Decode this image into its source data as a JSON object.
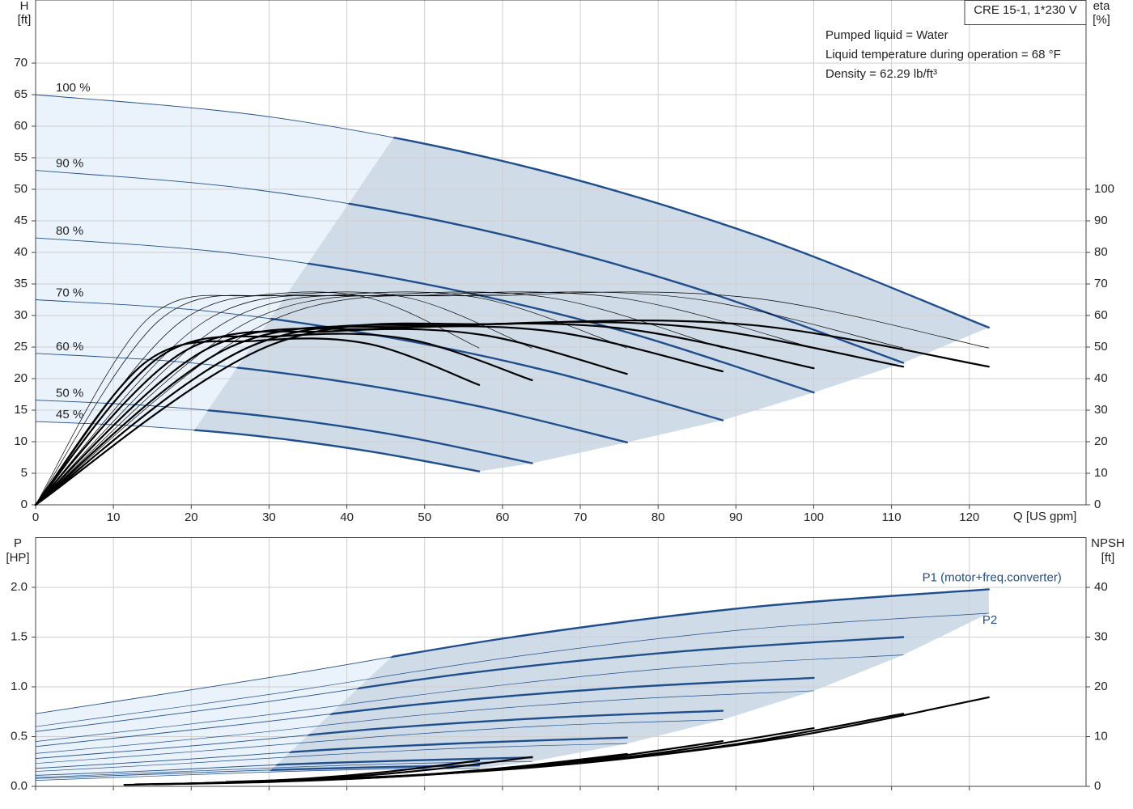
{
  "chart_data": [
    {
      "type": "line",
      "y_label": "H",
      "y_unit": "[ft]",
      "y2_label": "eta",
      "y2_unit": "[%]",
      "x_label": "Q [US gpm]",
      "legend_box": "CRE 15-1, 1*230 V",
      "annotations": [
        "Pumped liquid = Water",
        "Liquid temperature during operation = 68 °F",
        "Density = 62.29 lb/ft³"
      ],
      "xlim": [
        0,
        135
      ],
      "xticks": [
        0,
        10,
        20,
        30,
        40,
        50,
        60,
        70,
        80,
        90,
        100,
        110,
        120
      ],
      "xtick_labels": true,
      "ylim": [
        0,
        80
      ],
      "yticks": [
        0,
        5,
        10,
        15,
        20,
        25,
        30,
        35,
        40,
        45,
        50,
        55,
        60,
        65,
        70
      ],
      "y2lim": [
        0,
        160
      ],
      "y2ticks": [
        0,
        10,
        20,
        30,
        40,
        50,
        60,
        70,
        80,
        90,
        100
      ],
      "grid": true,
      "label_position": "start",
      "min_flow_line": {
        "x": [
          20.5,
          46
        ],
        "values": [
          12,
          58.2
        ]
      },
      "series": [
        {
          "name": "100 %",
          "color": "#1f4e8c",
          "weight": "split",
          "x": [
            0,
            30.6,
            61.3,
            91.9,
            122.5
          ],
          "values": [
            65,
            61.4,
            54.1,
            43.0,
            28.1
          ]
        },
        {
          "name": "90 %",
          "color": "#1f4e8c",
          "weight": "split",
          "x": [
            0,
            27.9,
            55.8,
            83.6,
            111.5
          ],
          "values": [
            53,
            50.0,
            44.0,
            34.8,
            22.5
          ]
        },
        {
          "name": "80 %",
          "color": "#1f4e8c",
          "weight": "split",
          "x": [
            0,
            25,
            50,
            75,
            100
          ],
          "values": [
            42.3,
            39.9,
            35.0,
            27.7,
            17.8
          ]
        },
        {
          "name": "70 %",
          "color": "#1f4e8c",
          "weight": "split",
          "x": [
            0,
            22.1,
            44.2,
            66.2,
            88.3
          ],
          "values": [
            32.5,
            30.7,
            26.8,
            21.1,
            13.4
          ]
        },
        {
          "name": "60 %",
          "color": "#1f4e8c",
          "weight": "split",
          "x": [
            0,
            19,
            38,
            57,
            76
          ],
          "values": [
            24.0,
            22.6,
            19.8,
            15.6,
            9.9
          ]
        },
        {
          "name": "50 %",
          "color": "#1f4e8c",
          "weight": "split",
          "x": [
            0,
            16,
            31.9,
            47.9,
            63.8
          ],
          "values": [
            16.6,
            15.6,
            13.7,
            10.7,
            6.6
          ]
        },
        {
          "name": "45 %",
          "color": "#1f4e8c",
          "weight": "split",
          "x": [
            0,
            14.3,
            28.5,
            42.8,
            57
          ],
          "values": [
            13.2,
            12.4,
            10.9,
            8.5,
            5.3
          ]
        },
        {
          "axis": "y2",
          "color": "#000000",
          "weight": "light",
          "x": [
            0,
            30.6,
            61.3,
            91.9,
            122.5
          ],
          "values": [
            0,
            58.7,
            66.4,
            65.6,
            49.7
          ]
        },
        {
          "axis": "y2",
          "color": "#000000",
          "weight": "light",
          "x": [
            0,
            27.9,
            55.8,
            83.6,
            111.5
          ],
          "values": [
            0,
            58.7,
            66.4,
            65.6,
            49.7
          ]
        },
        {
          "axis": "y2",
          "color": "#000000",
          "weight": "light",
          "x": [
            0,
            25,
            50,
            75,
            100
          ],
          "values": [
            0,
            58.7,
            66.4,
            65.6,
            49.7
          ]
        },
        {
          "axis": "y2",
          "color": "#000000",
          "weight": "light",
          "x": [
            0,
            22.1,
            44.2,
            66.2,
            88.3
          ],
          "values": [
            0,
            58.7,
            66.4,
            65.6,
            49.7
          ]
        },
        {
          "axis": "y2",
          "color": "#000000",
          "weight": "light",
          "x": [
            0,
            19,
            38,
            57,
            76
          ],
          "values": [
            0,
            58.7,
            66.4,
            65.6,
            49.7
          ]
        },
        {
          "axis": "y2",
          "color": "#000000",
          "weight": "light",
          "x": [
            0,
            16,
            31.9,
            47.9,
            63.8
          ],
          "values": [
            0,
            58.7,
            66.4,
            65.6,
            49.7
          ]
        },
        {
          "axis": "y2",
          "color": "#000000",
          "weight": "light",
          "x": [
            0,
            14.3,
            28.5,
            42.8,
            57
          ],
          "values": [
            0,
            58.7,
            66.4,
            65.6,
            49.7
          ]
        },
        {
          "axis": "y2",
          "color": "#000000",
          "weight": "heavy",
          "x": [
            0,
            30.6,
            61.3,
            91.9,
            122.5
          ],
          "values": [
            0,
            51,
            57.4,
            57,
            43.8
          ]
        },
        {
          "axis": "y2",
          "color": "#000000",
          "weight": "heavy",
          "x": [
            0,
            27.9,
            55.8,
            83.6,
            111.5
          ],
          "values": [
            0,
            50.5,
            57,
            56.5,
            43.8
          ]
        },
        {
          "axis": "y2",
          "color": "#000000",
          "weight": "heavy",
          "x": [
            0,
            25,
            50,
            75,
            100
          ],
          "values": [
            0,
            50,
            56.5,
            56,
            43.3
          ]
        },
        {
          "axis": "y2",
          "color": "#000000",
          "weight": "heavy",
          "x": [
            0,
            22.1,
            44.2,
            66.2,
            88.3
          ],
          "values": [
            0,
            49.5,
            55.8,
            55,
            42.3
          ]
        },
        {
          "axis": "y2",
          "color": "#000000",
          "weight": "heavy",
          "x": [
            0,
            19,
            38,
            57,
            76
          ],
          "values": [
            0,
            48.5,
            55,
            54,
            41.5
          ]
        },
        {
          "axis": "y2",
          "color": "#000000",
          "weight": "heavy",
          "x": [
            0,
            16,
            31.9,
            47.9,
            63.8
          ],
          "values": [
            0,
            47,
            53.5,
            52.5,
            39.5
          ]
        },
        {
          "axis": "y2",
          "color": "#000000",
          "weight": "heavy",
          "x": [
            0,
            14.3,
            28.5,
            42.8,
            57
          ],
          "values": [
            0,
            45.5,
            52,
            51,
            38
          ]
        }
      ]
    },
    {
      "type": "line",
      "y_label": "P",
      "y_unit": "[HP]",
      "y2_label": "NPSH",
      "y2_unit": "[ft]",
      "xlim": [
        0,
        135
      ],
      "xticks": [
        0,
        10,
        20,
        30,
        40,
        50,
        60,
        70,
        80,
        90,
        100,
        110,
        120
      ],
      "xtick_labels": false,
      "ylim": [
        0,
        2.5
      ],
      "yticks": [
        {
          "value": 0,
          "label": "0.0"
        },
        {
          "value": 0.5,
          "label": "0.5"
        },
        {
          "value": 1,
          "label": "1.0"
        },
        {
          "value": 1.5,
          "label": "1.5"
        },
        {
          "value": 2,
          "label": "2.0"
        }
      ],
      "y2lim": [
        0,
        50
      ],
      "y2ticks": [
        0,
        10,
        20,
        30,
        40
      ],
      "grid": true,
      "label_position": "end",
      "min_flow_line": {
        "x": [
          28,
          46
        ],
        "values": [
          0,
          1.32
        ]
      },
      "series": [
        {
          "name": "P1 (motor+freq.converter)",
          "color": "#1f4e8c",
          "weight": "split",
          "x": [
            0,
            30.6,
            61.3,
            91.9,
            122.5
          ],
          "values": [
            0.73,
            1.1,
            1.5,
            1.8,
            1.98
          ]
        },
        {
          "color": "#1f4e8c",
          "weight": "split",
          "x": [
            0,
            27.9,
            55.8,
            83.6,
            111.5
          ],
          "values": [
            0.55,
            0.83,
            1.14,
            1.36,
            1.5
          ]
        },
        {
          "color": "#1f4e8c",
          "weight": "split",
          "x": [
            0,
            25,
            50,
            75,
            100
          ],
          "values": [
            0.4,
            0.61,
            0.83,
            0.99,
            1.09
          ]
        },
        {
          "color": "#1f4e8c",
          "weight": "split",
          "x": [
            0,
            22.1,
            44.2,
            66.2,
            88.3
          ],
          "values": [
            0.28,
            0.42,
            0.58,
            0.69,
            0.76
          ]
        },
        {
          "color": "#1f4e8c",
          "weight": "split",
          "x": [
            0,
            19,
            38,
            57,
            76
          ],
          "values": [
            0.18,
            0.27,
            0.37,
            0.44,
            0.49
          ]
        },
        {
          "color": "#1f4e8c",
          "weight": "split",
          "x": [
            0,
            16,
            31.9,
            47.9,
            63.8
          ],
          "values": [
            0.11,
            0.16,
            0.22,
            0.26,
            0.29
          ]
        },
        {
          "color": "#1f4e8c",
          "weight": "split",
          "x": [
            0,
            14.3,
            28.5,
            42.8,
            57
          ],
          "values": [
            0.08,
            0.12,
            0.16,
            0.19,
            0.21
          ]
        },
        {
          "name": "P2",
          "color": "#1f4e8c",
          "weight": "light",
          "x": [
            0,
            30.6,
            61.3,
            91.9,
            122.5
          ],
          "values": [
            0.6,
            0.93,
            1.3,
            1.58,
            1.74
          ]
        },
        {
          "color": "#1f4e8c",
          "weight": "light",
          "x": [
            0,
            27.9,
            55.8,
            83.6,
            111.5
          ],
          "values": [
            0.45,
            0.7,
            0.98,
            1.2,
            1.32
          ]
        },
        {
          "color": "#1f4e8c",
          "weight": "light",
          "x": [
            0,
            25,
            50,
            75,
            100
          ],
          "values": [
            0.33,
            0.51,
            0.72,
            0.87,
            0.96
          ]
        },
        {
          "color": "#1f4e8c",
          "weight": "light",
          "x": [
            0,
            22.1,
            44.2,
            66.2,
            88.3
          ],
          "values": [
            0.23,
            0.36,
            0.5,
            0.61,
            0.67
          ]
        },
        {
          "color": "#1f4e8c",
          "weight": "light",
          "x": [
            0,
            19,
            38,
            57,
            76
          ],
          "values": [
            0.15,
            0.23,
            0.32,
            0.39,
            0.43
          ]
        },
        {
          "color": "#1f4e8c",
          "weight": "light",
          "x": [
            0,
            16,
            31.9,
            47.9,
            63.8
          ],
          "values": [
            0.09,
            0.14,
            0.19,
            0.23,
            0.25
          ]
        },
        {
          "color": "#1f4e8c",
          "weight": "light",
          "x": [
            0,
            14.3,
            28.5,
            42.8,
            57
          ],
          "values": [
            0.06,
            0.1,
            0.14,
            0.17,
            0.18
          ]
        },
        {
          "axis": "y2",
          "color": "#000000",
          "weight": "heavy",
          "x": [
            24.5,
            49,
            73.5,
            98,
            122.5
          ],
          "values": [
            0.9,
            2.3,
            5.2,
            10.2,
            17.9
          ]
        },
        {
          "axis": "y2",
          "color": "#000000",
          "weight": "heavy",
          "x": [
            22.3,
            44.6,
            66.9,
            89.2,
            111.5
          ],
          "values": [
            0.7,
            1.9,
            4.2,
            8.3,
            14.6
          ]
        },
        {
          "axis": "y2",
          "color": "#000000",
          "weight": "heavy",
          "x": [
            20,
            40,
            60,
            80,
            100
          ],
          "values": [
            0.6,
            1.5,
            3.4,
            6.7,
            11.7
          ]
        },
        {
          "axis": "y2",
          "color": "#000000",
          "weight": "heavy",
          "x": [
            17.7,
            35.3,
            53,
            70.6,
            88.3
          ],
          "values": [
            0.5,
            1.2,
            2.6,
            5.2,
            9.1
          ]
        },
        {
          "axis": "y2",
          "color": "#000000",
          "weight": "heavy",
          "x": [
            15.2,
            30.4,
            45.6,
            60.8,
            76
          ],
          "values": [
            0.4,
            0.9,
            1.9,
            3.8,
            6.5
          ]
        },
        {
          "axis": "y2",
          "color": "#000000",
          "weight": "heavy",
          "x": [
            12.8,
            25.5,
            38.3,
            51,
            63.8
          ],
          "values": [
            0.4,
            0.8,
            1.7,
            3.4,
            5.9
          ]
        },
        {
          "axis": "y2",
          "color": "#000000",
          "weight": "heavy",
          "x": [
            11.4,
            22.8,
            34.2,
            45.6,
            57
          ],
          "values": [
            0.3,
            0.7,
            1.5,
            3.0,
            5.2
          ]
        }
      ]
    }
  ]
}
